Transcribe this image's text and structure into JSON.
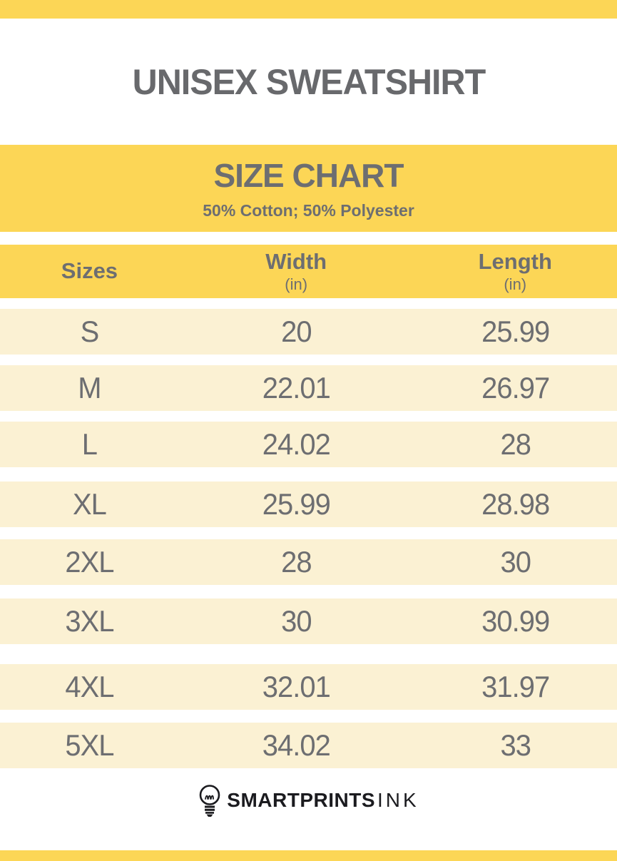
{
  "page": {
    "title": "UNISEX SWEATSHIRT"
  },
  "banner": {
    "title": "SIZE CHART",
    "subtitle": "50% Cotton; 50% Polyester"
  },
  "table": {
    "columns": [
      {
        "label": "Sizes",
        "unit": ""
      },
      {
        "label": "Width",
        "unit": "(in)"
      },
      {
        "label": "Length",
        "unit": "(in)"
      }
    ],
    "rows": [
      {
        "size": "S",
        "width": "20",
        "length": "25.99"
      },
      {
        "size": "M",
        "width": "22.01",
        "length": "26.97"
      },
      {
        "size": "L",
        "width": "24.02",
        "length": "28"
      },
      {
        "size": "XL",
        "width": "25.99",
        "length": "28.98"
      },
      {
        "size": "2XL",
        "width": "28",
        "length": "30"
      },
      {
        "size": "3XL",
        "width": "30",
        "length": "30.99"
      },
      {
        "size": "4XL",
        "width": "32.01",
        "length": "31.97"
      },
      {
        "size": "5XL",
        "width": "34.02",
        "length": "33"
      }
    ]
  },
  "footer": {
    "brand_bold": "SMARTPRINTS",
    "brand_light": "INK",
    "logo_icon": "lightbulb-icon"
  },
  "colors": {
    "accent_yellow": "#FCD656",
    "row_cream": "#FBF1D3",
    "text_gray": "#6D6E71",
    "brand_black": "#1B1B1F"
  },
  "chart_data": {
    "type": "table",
    "title": "SIZE CHART",
    "subtitle": "50% Cotton; 50% Polyester",
    "product": "UNISEX SWEATSHIRT",
    "columns": [
      "Sizes",
      "Width (in)",
      "Length (in)"
    ],
    "rows": [
      [
        "S",
        20,
        25.99
      ],
      [
        "M",
        22.01,
        26.97
      ],
      [
        "L",
        24.02,
        28
      ],
      [
        "XL",
        25.99,
        28.98
      ],
      [
        "2XL",
        28,
        30
      ],
      [
        "3XL",
        30,
        30.99
      ],
      [
        "4XL",
        32.01,
        31.97
      ],
      [
        "5XL",
        34.02,
        33
      ]
    ]
  }
}
